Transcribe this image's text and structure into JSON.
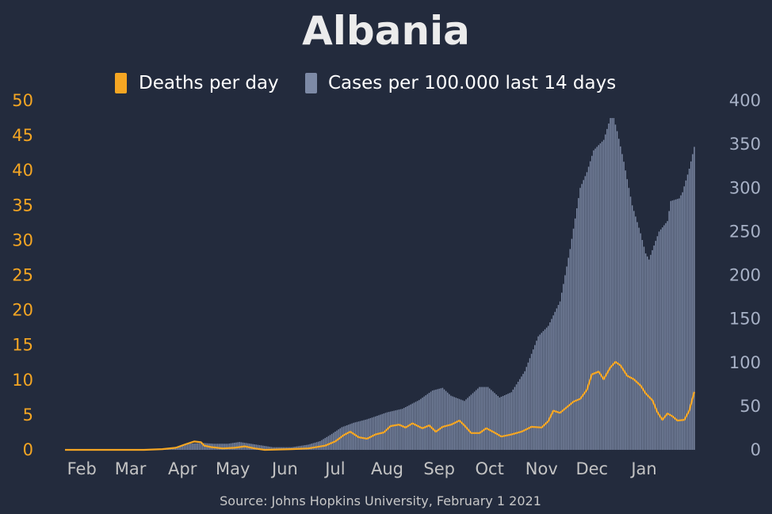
{
  "chart_data": {
    "type": "bar",
    "title": "Albania",
    "source": "Source: Johns Hopkins University, February 1 2021",
    "colors": {
      "background": "#232b3d",
      "deaths": "#f5a623",
      "cases": "#7d8aa6",
      "title": "#ececec"
    },
    "legend": {
      "placement": "top-center",
      "entries": [
        "Deaths per day",
        "Cases per 100.000 last 14 days"
      ]
    },
    "grid": false,
    "x_axis": {
      "range": [
        "2020-01-22",
        "2021-01-31"
      ],
      "tick_labels": [
        "Feb",
        "Mar",
        "Apr",
        "May",
        "Jun",
        "Jul",
        "Aug",
        "Sep",
        "Oct",
        "Nov",
        "Dec",
        "Jan"
      ]
    },
    "y_left": {
      "label": "",
      "ylim": [
        0,
        50
      ],
      "ticks": [
        "0",
        "5",
        "10",
        "15",
        "20",
        "25",
        "30",
        "35",
        "40",
        "45",
        "50"
      ]
    },
    "y_right": {
      "label": "",
      "ylim": [
        0,
        400
      ],
      "ticks": [
        "0",
        "50",
        "100",
        "150",
        "200",
        "250",
        "300",
        "350",
        "400"
      ]
    },
    "series": [
      {
        "name": "Cases per 100.000 last 14 days",
        "type": "bar",
        "axis": "right",
        "points": [
          [
            "2020-01-22",
            0
          ],
          [
            "2020-03-09",
            0
          ],
          [
            "2020-03-20",
            1
          ],
          [
            "2020-03-25",
            2
          ],
          [
            "2020-04-01",
            5
          ],
          [
            "2020-04-05",
            7
          ],
          [
            "2020-04-12",
            8
          ],
          [
            "2020-04-20",
            7
          ],
          [
            "2020-04-28",
            7
          ],
          [
            "2020-05-05",
            9
          ],
          [
            "2020-05-15",
            6
          ],
          [
            "2020-05-25",
            3
          ],
          [
            "2020-06-05",
            3
          ],
          [
            "2020-06-15",
            6
          ],
          [
            "2020-06-22",
            10
          ],
          [
            "2020-06-28",
            17
          ],
          [
            "2020-07-05",
            26
          ],
          [
            "2020-07-12",
            31
          ],
          [
            "2020-07-20",
            35
          ],
          [
            "2020-08-01",
            43
          ],
          [
            "2020-08-10",
            47
          ],
          [
            "2020-08-20",
            57
          ],
          [
            "2020-08-28",
            68
          ],
          [
            "2020-09-03",
            71
          ],
          [
            "2020-09-08",
            62
          ],
          [
            "2020-09-16",
            56
          ],
          [
            "2020-09-25",
            72
          ],
          [
            "2020-09-30",
            72
          ],
          [
            "2020-10-07",
            60
          ],
          [
            "2020-10-14",
            66
          ],
          [
            "2020-10-22",
            90
          ],
          [
            "2020-10-30",
            130
          ],
          [
            "2020-11-05",
            142
          ],
          [
            "2020-11-12",
            170
          ],
          [
            "2020-11-18",
            230
          ],
          [
            "2020-11-24",
            300
          ],
          [
            "2020-11-28",
            318
          ],
          [
            "2020-12-02",
            343
          ],
          [
            "2020-12-08",
            355
          ],
          [
            "2020-12-12",
            380
          ],
          [
            "2020-12-14",
            380
          ],
          [
            "2020-12-16",
            365
          ],
          [
            "2020-12-20",
            330
          ],
          [
            "2020-12-25",
            280
          ],
          [
            "2020-12-30",
            248
          ],
          [
            "2021-01-02",
            225
          ],
          [
            "2021-01-04",
            218
          ],
          [
            "2021-01-10",
            250
          ],
          [
            "2021-01-15",
            262
          ],
          [
            "2021-01-17",
            285
          ],
          [
            "2021-01-22",
            288
          ],
          [
            "2021-01-24",
            295
          ],
          [
            "2021-01-28",
            322
          ],
          [
            "2021-01-31",
            347
          ]
        ]
      },
      {
        "name": "Deaths per day",
        "type": "line",
        "axis": "left",
        "points": [
          [
            "2020-01-22",
            0
          ],
          [
            "2020-03-09",
            0
          ],
          [
            "2020-03-20",
            0.1
          ],
          [
            "2020-03-28",
            0.3
          ],
          [
            "2020-04-03",
            0.8
          ],
          [
            "2020-04-08",
            1.2
          ],
          [
            "2020-04-12",
            1.1
          ],
          [
            "2020-04-14",
            0.6
          ],
          [
            "2020-04-18",
            0.4
          ],
          [
            "2020-04-25",
            0.2
          ],
          [
            "2020-05-02",
            0.3
          ],
          [
            "2020-05-08",
            0.5
          ],
          [
            "2020-05-14",
            0.2
          ],
          [
            "2020-05-20",
            0
          ],
          [
            "2020-06-05",
            0.1
          ],
          [
            "2020-06-15",
            0.2
          ],
          [
            "2020-06-25",
            0.6
          ],
          [
            "2020-07-01",
            1.2
          ],
          [
            "2020-07-06",
            2.1
          ],
          [
            "2020-07-10",
            2.6
          ],
          [
            "2020-07-15",
            1.8
          ],
          [
            "2020-07-20",
            1.6
          ],
          [
            "2020-07-25",
            2.2
          ],
          [
            "2020-07-30",
            2.5
          ],
          [
            "2020-08-03",
            3.4
          ],
          [
            "2020-08-08",
            3.6
          ],
          [
            "2020-08-12",
            3.2
          ],
          [
            "2020-08-16",
            3.8
          ],
          [
            "2020-08-22",
            3.1
          ],
          [
            "2020-08-26",
            3.5
          ],
          [
            "2020-08-30",
            2.6
          ],
          [
            "2020-09-03",
            3.3
          ],
          [
            "2020-09-08",
            3.6
          ],
          [
            "2020-09-13",
            4.2
          ],
          [
            "2020-09-16",
            3.5
          ],
          [
            "2020-09-20",
            2.4
          ],
          [
            "2020-09-25",
            2.4
          ],
          [
            "2020-09-29",
            3.1
          ],
          [
            "2020-10-03",
            2.6
          ],
          [
            "2020-10-08",
            1.9
          ],
          [
            "2020-10-14",
            2.2
          ],
          [
            "2020-10-20",
            2.6
          ],
          [
            "2020-10-26",
            3.3
          ],
          [
            "2020-11-01",
            3.2
          ],
          [
            "2020-11-05",
            4.1
          ],
          [
            "2020-11-08",
            5.6
          ],
          [
            "2020-11-12",
            5.3
          ],
          [
            "2020-11-16",
            6.1
          ],
          [
            "2020-11-20",
            6.9
          ],
          [
            "2020-11-24",
            7.3
          ],
          [
            "2020-11-28",
            8.6
          ],
          [
            "2020-12-01",
            10.8
          ],
          [
            "2020-12-05",
            11.2
          ],
          [
            "2020-12-08",
            10.1
          ],
          [
            "2020-12-12",
            11.8
          ],
          [
            "2020-12-15",
            12.6
          ],
          [
            "2020-12-18",
            12.1
          ],
          [
            "2020-12-22",
            10.6
          ],
          [
            "2020-12-26",
            10.1
          ],
          [
            "2020-12-30",
            9.2
          ],
          [
            "2021-01-02",
            8.1
          ],
          [
            "2021-01-06",
            7.1
          ],
          [
            "2021-01-09",
            5.4
          ],
          [
            "2021-01-12",
            4.3
          ],
          [
            "2021-01-15",
            5.2
          ],
          [
            "2021-01-18",
            4.8
          ],
          [
            "2021-01-21",
            4.2
          ],
          [
            "2021-01-25",
            4.3
          ],
          [
            "2021-01-28",
            5.6
          ],
          [
            "2021-01-31",
            8.3
          ]
        ]
      }
    ]
  }
}
